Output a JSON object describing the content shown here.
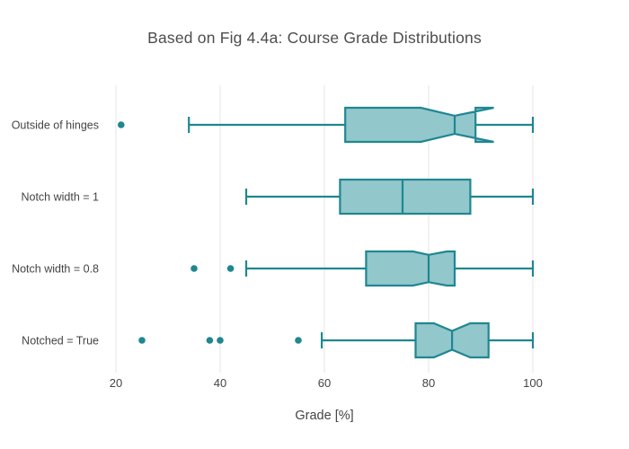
{
  "chart_data": {
    "type": "box",
    "orientation": "horizontal",
    "title": "Based on Fig 4.4a: Course Grade Distributions",
    "xlabel": "Grade [%]",
    "x_ticks": [
      20,
      40,
      60,
      80,
      100
    ],
    "x_range": [
      17.5,
      109
    ],
    "grid": true,
    "legend": false,
    "colors": {
      "line": "#1f8790",
      "fill": "#92c7cc",
      "grid": "#ececec",
      "text": "#444444",
      "title_text": "#4d4d4d"
    },
    "series": [
      {
        "label": "Outside of hinges",
        "min": 34,
        "q1": 64,
        "median": 85,
        "q3": 89,
        "max": 100,
        "notch_low": 78.5,
        "notch_high": 92.5,
        "notch_pinch_frac": 0.53,
        "outliers": [
          21
        ]
      },
      {
        "label": "Notch width = 1",
        "min": 45,
        "q1": 63,
        "median": 75,
        "q3": 88,
        "max": 100,
        "notch_low": 75,
        "notch_high": 75,
        "notch_pinch_frac": 1.0,
        "outliers": []
      },
      {
        "label": "Notch width = 0.8",
        "min": 45,
        "q1": 68,
        "median": 80,
        "q3": 85,
        "max": 100,
        "notch_low": 77,
        "notch_high": 83.5,
        "notch_pinch_frac": 0.8,
        "outliers": [
          35,
          42
        ]
      },
      {
        "label": "Notched = True",
        "min": 59.5,
        "q1": 77.5,
        "median": 84.5,
        "q3": 91.5,
        "max": 100,
        "notch_low": 81,
        "notch_high": 88,
        "notch_pinch_frac": 0.55,
        "outliers": [
          25,
          38,
          40,
          55
        ]
      }
    ]
  }
}
